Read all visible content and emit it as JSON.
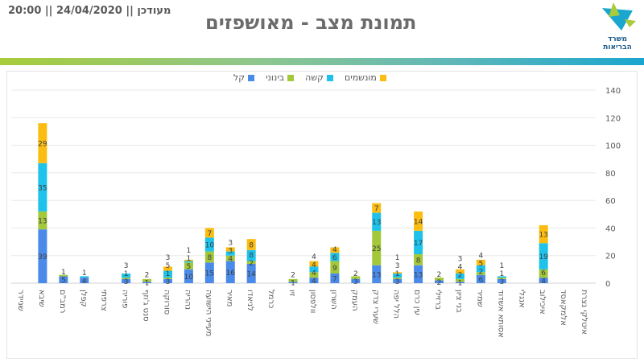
{
  "header": {
    "updated_text": "מעודכן || 24/04/2020 || 20:00",
    "title": "תמונת מצב - מאושפזים",
    "logo_text_line1": "משרד",
    "logo_text_line2": "הבריאות"
  },
  "colors": {
    "mild": "#4a8ae8",
    "moderate": "#a3c83a",
    "severe": "#1ec2ea",
    "ventilated": "#fbbd12"
  },
  "chart_data": {
    "type": "bar",
    "stacked": true,
    "title": "",
    "xlabel": "",
    "ylabel": "",
    "ylim": [
      0,
      140
    ],
    "yticks": [
      0,
      20,
      40,
      60,
      80,
      100,
      120,
      140
    ],
    "y_axis_position": "right",
    "grid": true,
    "legend_position": "top-center",
    "categories": [
      "שניידר",
      "שיבא",
      "רמב\"ם",
      "קפלן",
      "צרפתי",
      "פוריה",
      "סנט ג'וזף",
      "סורוקה",
      "נהריה",
      "מעייני הישועה",
      "מאיר",
      "לניאדו",
      "כרמל",
      "זיו",
      "וולפסון",
      "השרון",
      "העמק",
      "שערי צדק",
      "הלל יפה",
      "עין כרם",
      "ברזילי",
      "בני ציון",
      "שמיר",
      "אסותא אשדוד",
      "אנגלי",
      "איכילוב",
      "אלמקאסד",
      "איטלקי נצרת"
    ],
    "series": [
      {
        "name": "קל",
        "key": "mild",
        "values": [
          0,
          39,
          5,
          4,
          0,
          3,
          1,
          3,
          10,
          15,
          16,
          14,
          0,
          1,
          4,
          7,
          3,
          13,
          3,
          13,
          2,
          1,
          6,
          3,
          0,
          4,
          0,
          0
        ]
      },
      {
        "name": "בינוני",
        "key": "moderate",
        "values": [
          0,
          13,
          1,
          0,
          0,
          1,
          2,
          1,
          5,
          8,
          4,
          2,
          0,
          2,
          4,
          9,
          2,
          25,
          1,
          8,
          2,
          2,
          2,
          1,
          0,
          6,
          0,
          0
        ]
      },
      {
        "name": "קשה",
        "key": "severe",
        "values": [
          0,
          35,
          0,
          1,
          0,
          3,
          0,
          5,
          1,
          10,
          3,
          8,
          0,
          0,
          4,
          6,
          0,
          13,
          3,
          17,
          0,
          4,
          5,
          1,
          0,
          19,
          0,
          0
        ]
      },
      {
        "name": "מונשמים",
        "key": "ventilated",
        "values": [
          0,
          29,
          0,
          0,
          0,
          0,
          0,
          3,
          1,
          7,
          3,
          8,
          0,
          0,
          4,
          4,
          0,
          7,
          1,
          14,
          0,
          3,
          4,
          0,
          0,
          13,
          0,
          0
        ]
      }
    ],
    "legend": [
      "מונשמים",
      "קשה",
      "בינוני",
      "קל"
    ]
  }
}
